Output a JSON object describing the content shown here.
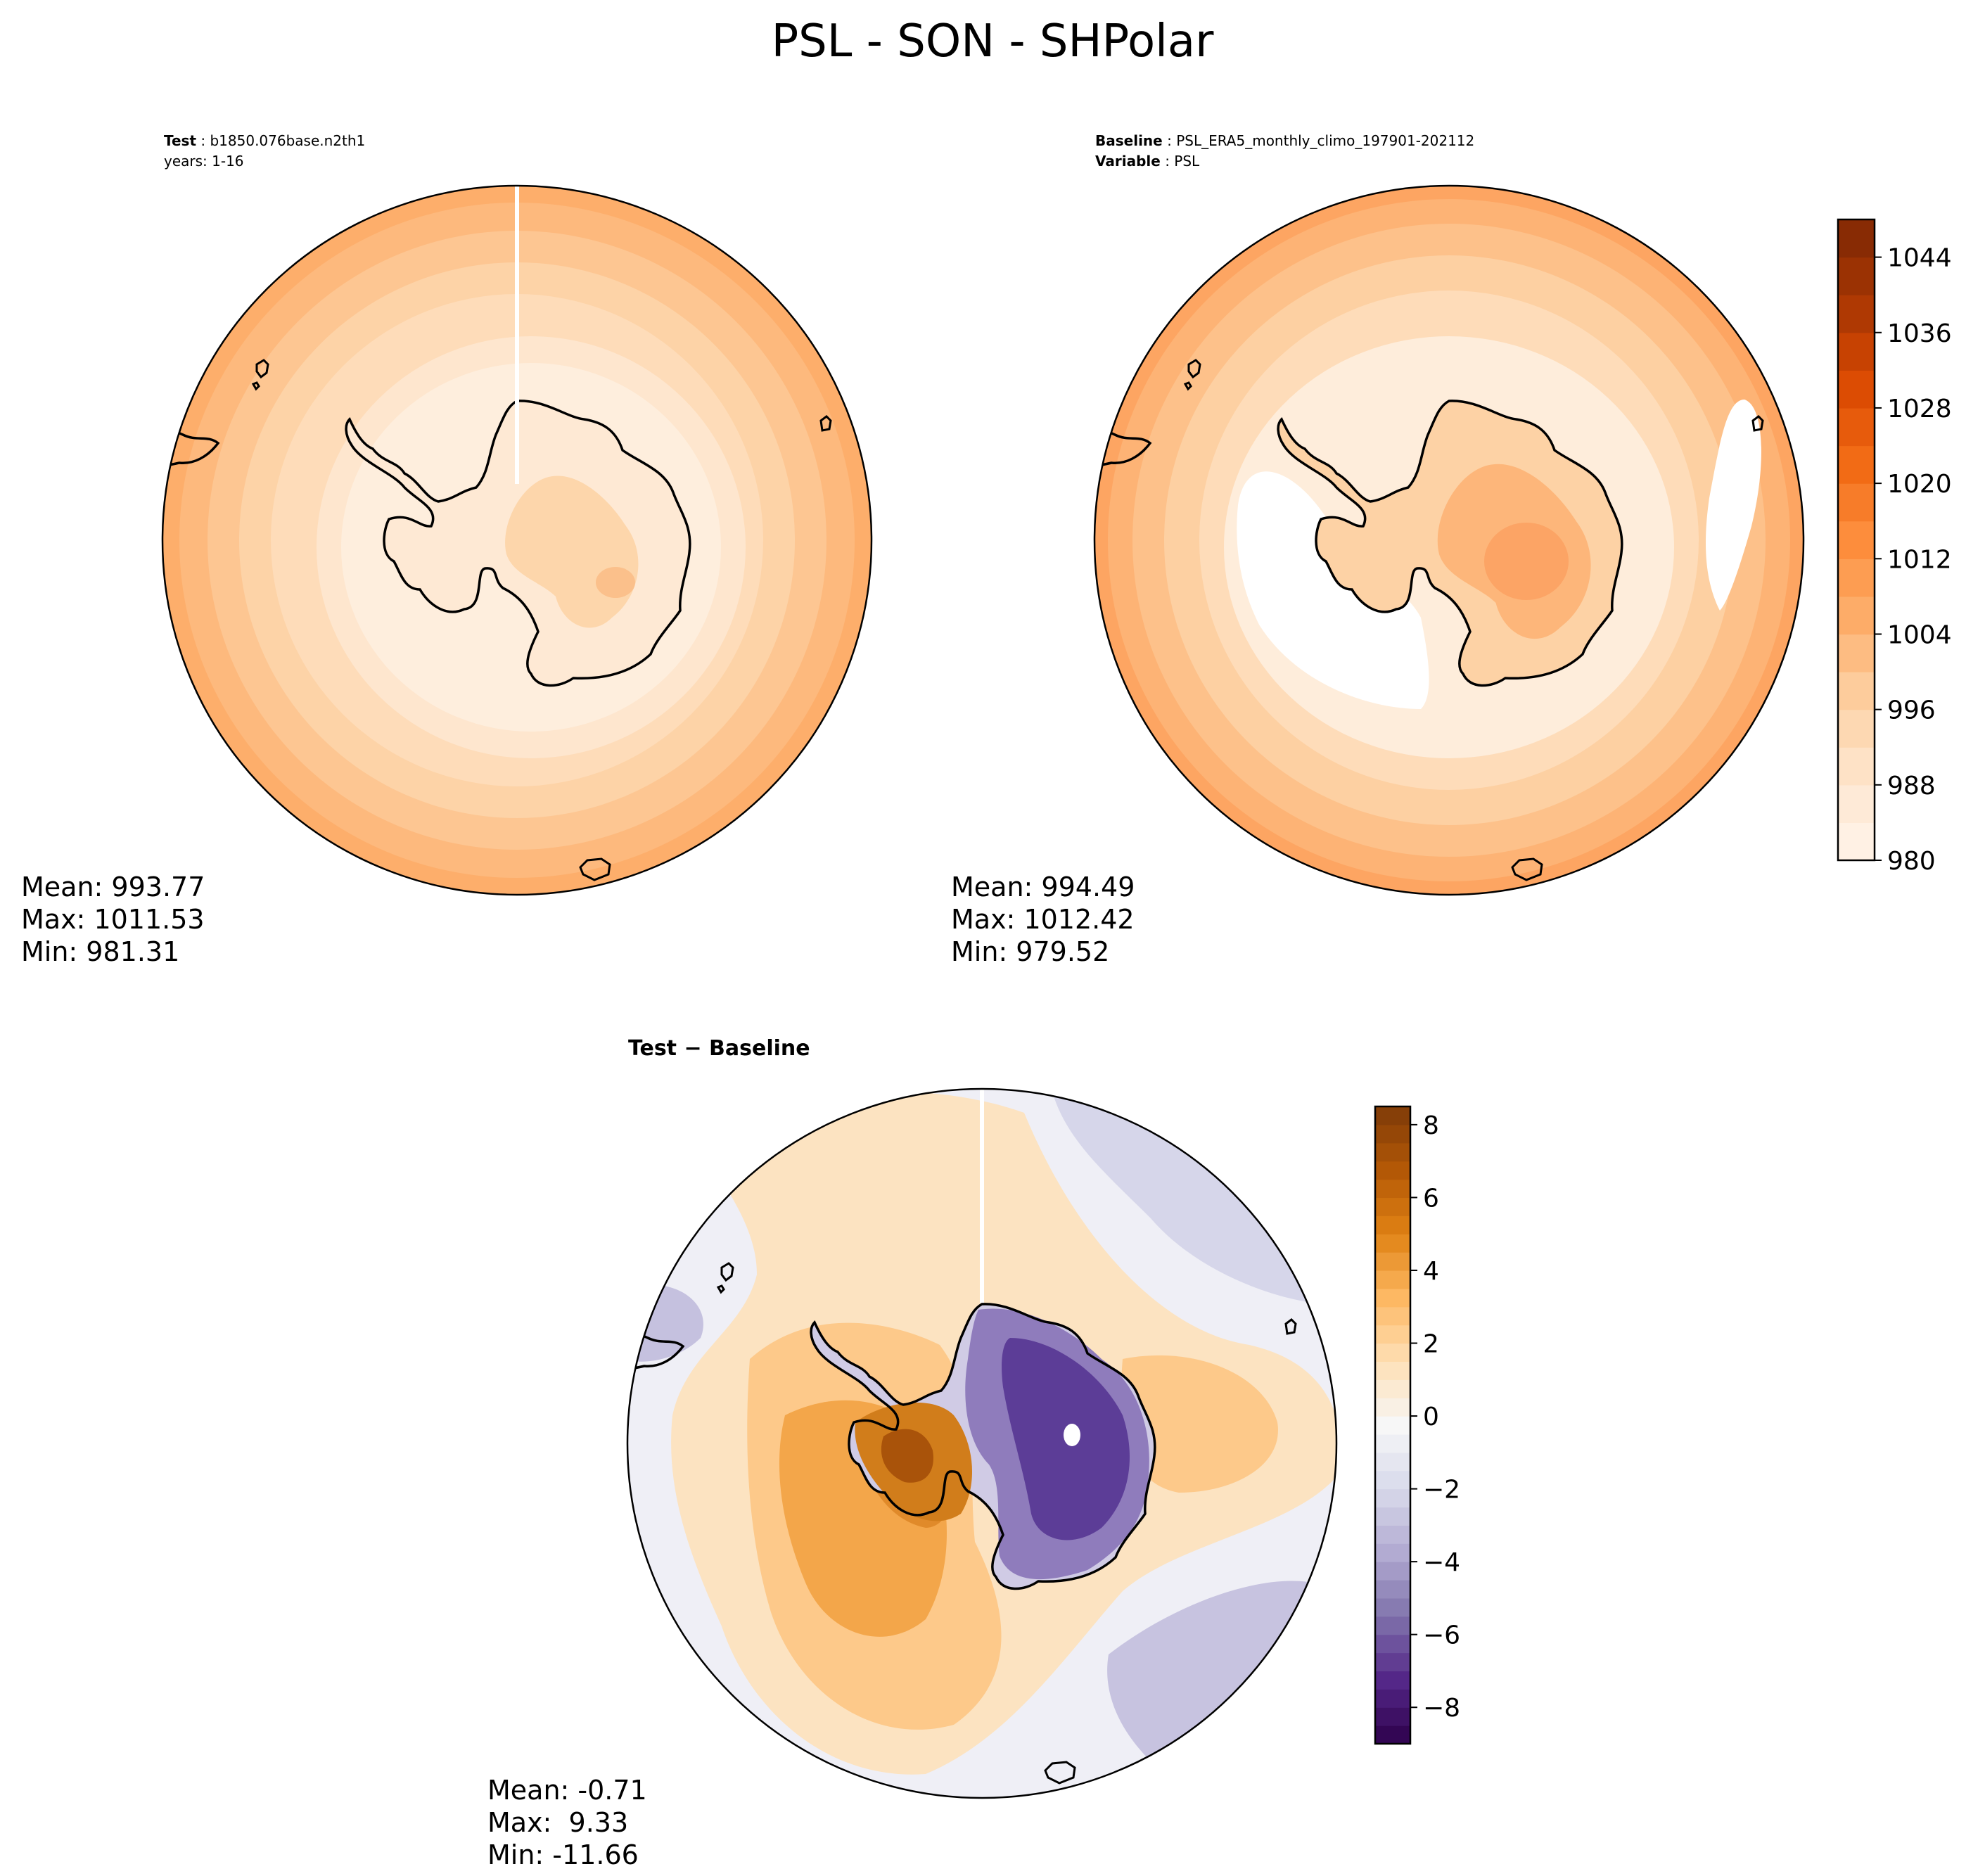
{
  "chart_data": {
    "type": "map-contour",
    "title": "PSL - SON - SHPolar",
    "panels": [
      {
        "id": "test",
        "header": [
          {
            "label": "Test",
            "value": "b1850.076base.n2th1"
          },
          {
            "label": "",
            "value": "years: 1-16"
          }
        ],
        "stats": {
          "mean": "Mean: 993.77",
          "max": "Max: 1011.53",
          "min": "Min: 981.31"
        }
      },
      {
        "id": "baseline",
        "header": [
          {
            "label": "Baseline",
            "value": "PSL_ERA5_monthly_climo_197901-202112"
          },
          {
            "label": "Variable",
            "value": "PSL"
          }
        ],
        "stats": {
          "mean": "Mean: 994.49",
          "max": "Max: 1012.42",
          "min": "Min: 979.52"
        }
      },
      {
        "id": "diff",
        "title": "Test − Baseline",
        "stats": {
          "mean": "Mean: -0.71",
          "max": "Max:  9.33",
          "min": "Min: -11.66"
        }
      }
    ],
    "colorbars": [
      {
        "name": "psl",
        "range": [
          980,
          1048
        ],
        "step": 4,
        "ticks": [
          980,
          988,
          996,
          1004,
          1012,
          1020,
          1028,
          1036,
          1044
        ],
        "tick_labels": [
          "980",
          "988",
          "996",
          "1004",
          "1012",
          "1020",
          "1028",
          "1036",
          "1044"
        ],
        "colors": [
          "#fff5eb",
          "#fee6ce",
          "#fdd0a2",
          "#fdae6b",
          "#fd8d3c",
          "#f16913",
          "#d94801",
          "#a63603",
          "#7f2704"
        ]
      },
      {
        "name": "diff",
        "range": [
          -9,
          8.5
        ],
        "step": 0.5,
        "ticks": [
          -8,
          -6,
          -4,
          -2,
          0,
          2,
          4,
          6,
          8
        ],
        "tick_labels": [
          "−8",
          "−6",
          "−4",
          "−2",
          "0",
          "2",
          "4",
          "6",
          "8"
        ],
        "colors": [
          "#2d004b",
          "#542788",
          "#8073ac",
          "#b2abd2",
          "#d8daeb",
          "#f7f7f7",
          "#fee0b6",
          "#fdb863",
          "#e08214",
          "#b35806",
          "#7f3b08"
        ]
      }
    ]
  }
}
